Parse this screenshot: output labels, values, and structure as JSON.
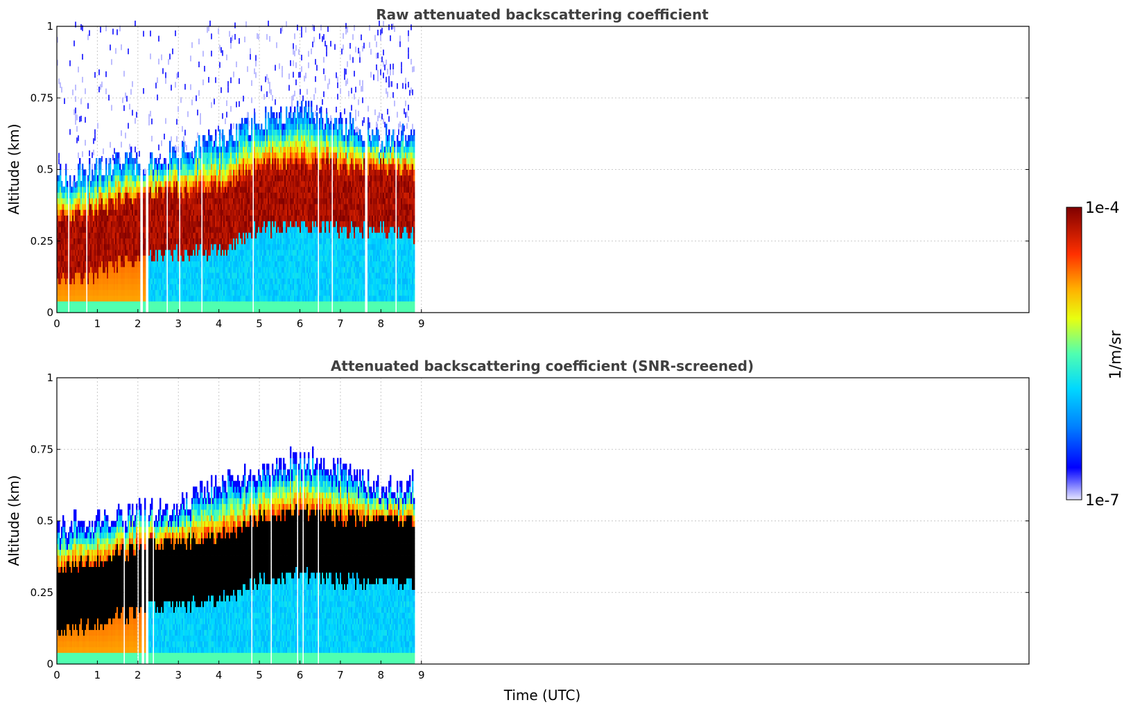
{
  "chart_data": [
    {
      "type": "heatmap",
      "title": "Raw attenuated backscattering coefficient",
      "xlabel": "",
      "ylabel": "Altitude (km)",
      "xlim": [
        0,
        24
      ],
      "ylim": [
        0,
        1
      ],
      "x_ticks": [
        "0",
        "1",
        "2",
        "3",
        "4",
        "5",
        "6",
        "7",
        "8",
        "9"
      ],
      "y_ticks": [
        "0",
        "0.25",
        "0.5",
        "0.75",
        "1"
      ],
      "grid": true,
      "data_end_hour": 8.8,
      "layer": {
        "hours": [
          0,
          1,
          2,
          3,
          4,
          5,
          6,
          7,
          8,
          8.8
        ],
        "top_km": [
          0.46,
          0.5,
          0.52,
          0.55,
          0.6,
          0.66,
          0.7,
          0.66,
          0.6,
          0.6
        ],
        "core_km": [
          0.22,
          0.25,
          0.3,
          0.32,
          0.33,
          0.4,
          0.42,
          0.4,
          0.4,
          0.38
        ]
      },
      "noise_above_layer": true
    },
    {
      "type": "heatmap",
      "title": "Attenuated backscattering coefficient (SNR-screened)",
      "xlabel": "Time (UTC)",
      "ylabel": "Altitude (km)",
      "xlim": [
        0,
        24
      ],
      "ylim": [
        0,
        1
      ],
      "x_ticks": [
        "0",
        "1",
        "2",
        "3",
        "4",
        "5",
        "6",
        "7",
        "8",
        "9"
      ],
      "y_ticks": [
        "0",
        "0.25",
        "0.5",
        "0.75",
        "1"
      ],
      "grid": true,
      "data_end_hour": 8.8,
      "layer": {
        "hours": [
          0,
          1,
          2,
          3,
          4,
          5,
          6,
          7,
          8,
          8.8
        ],
        "top_km": [
          0.46,
          0.5,
          0.52,
          0.55,
          0.62,
          0.67,
          0.71,
          0.67,
          0.6,
          0.62
        ],
        "core_km": [
          0.22,
          0.25,
          0.3,
          0.32,
          0.33,
          0.4,
          0.42,
          0.4,
          0.4,
          0.38
        ]
      },
      "noise_above_layer": false
    }
  ],
  "colorbar": {
    "label": "1/m/sr",
    "max_label": "1e-4",
    "min_label": "1e-7",
    "colormap": "jet",
    "scale": "log",
    "range": [
      1e-07,
      0.0001
    ]
  }
}
